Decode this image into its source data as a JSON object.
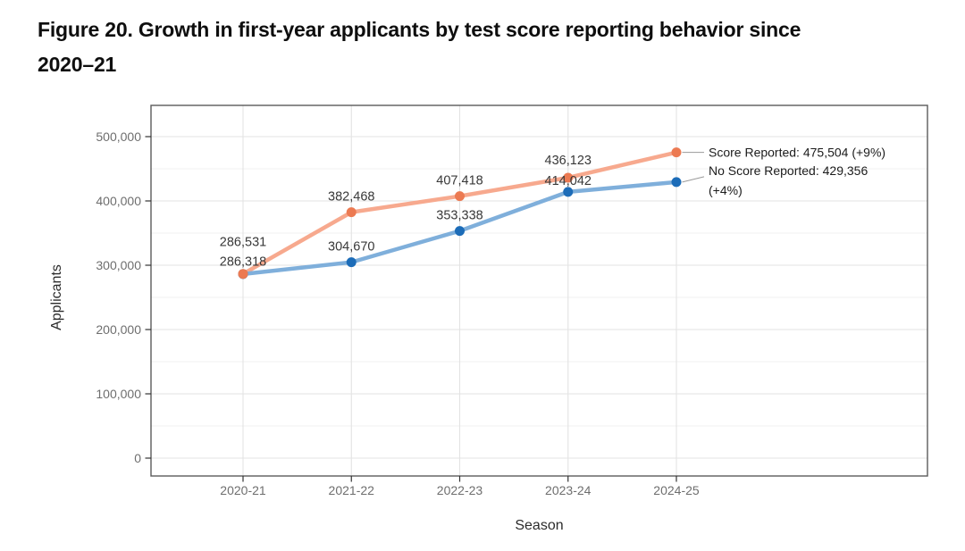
{
  "figure": {
    "title_line1": "Figure 20. Growth in first-year applicants by test score reporting behavior since",
    "title_line2": "2020–21"
  },
  "chart_data": {
    "type": "line",
    "title": "Figure 20. Growth in first-year applicants by test score reporting behavior since 2020–21",
    "xlabel": "Season",
    "ylabel": "Applicants",
    "categories": [
      "2020-21",
      "2021-22",
      "2022-23",
      "2023-24",
      "2024-25"
    ],
    "series": [
      {
        "name": "Score Reported",
        "values": [
          286531,
          382468,
          407418,
          436123,
          475504
        ],
        "point_labels": [
          "286,531",
          "382,468",
          "407,418",
          "436,123",
          null
        ],
        "end_annotation": [
          "Score Reported: 475,504 (+9%)"
        ],
        "line_color": "#f7a98e",
        "point_color": "#ec7a52"
      },
      {
        "name": "No Score Reported",
        "values": [
          286318,
          304670,
          353338,
          414042,
          429356
        ],
        "point_labels": [
          "286,318",
          "304,670",
          "353,338",
          "414,042",
          null
        ],
        "end_annotation": [
          "No Score Reported: 429,356",
          "(+4%)"
        ],
        "line_color": "#7fafdb",
        "point_color": "#1c6cb8"
      }
    ],
    "ylim": [
      0,
      500000
    ],
    "yticks": [
      0,
      100000,
      200000,
      300000,
      400000,
      500000
    ],
    "ytick_labels": [
      "0",
      "100,000",
      "200,000",
      "300,000",
      "400,000",
      "500,000"
    ],
    "minor_ytick_step": 50000,
    "grid": true,
    "legend_position": "annotations-right-of-last-points",
    "colors": {
      "grid_major": "#e3e3e3",
      "grid_minor": "#f0f0f0",
      "panel_border": "#5a5a5a",
      "tick": "#333333",
      "tick_label": "#6e6e6e",
      "data_label": "#383838",
      "annotation_text": "#1c1c1c",
      "leader_line": "#999999"
    }
  }
}
